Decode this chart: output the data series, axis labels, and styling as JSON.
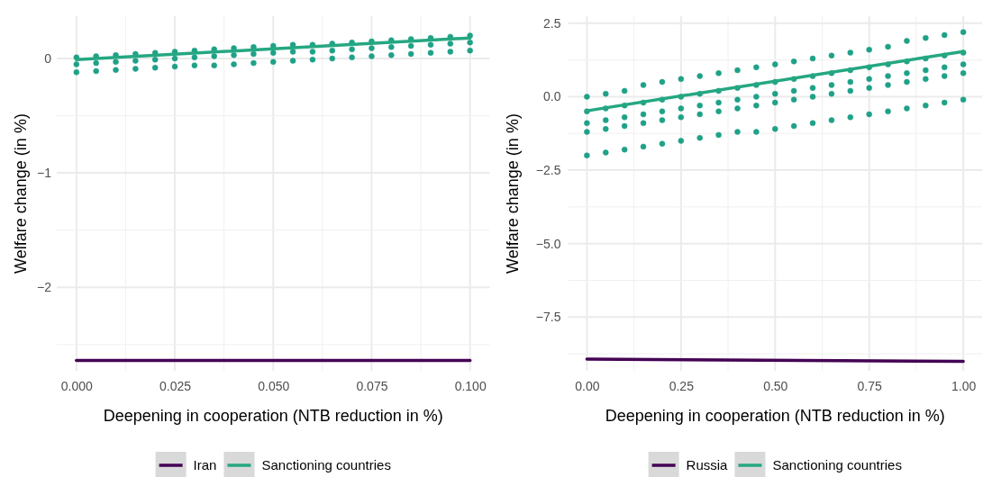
{
  "chart_data": [
    {
      "type": "scatter",
      "xlabel": "Deepening in cooperation (NTB reduction in %)",
      "ylabel": "Welfare change (in %)",
      "xlim": [
        -0.005,
        0.105
      ],
      "ylim": [
        -2.73,
        0.37
      ],
      "xticks": [
        {
          "value": 0,
          "label": "0.000"
        },
        {
          "value": 0.025,
          "label": "0.025"
        },
        {
          "value": 0.05,
          "label": "0.050"
        },
        {
          "value": 0.075,
          "label": "0.075"
        },
        {
          "value": 0.1,
          "label": "0.100"
        }
      ],
      "yticks": [
        {
          "value": -2,
          "label": "−2"
        },
        {
          "value": -1,
          "label": "−1"
        },
        0
      ],
      "grid": true,
      "legend": "bottom",
      "series": [
        {
          "marker": "circle",
          "color": "#1fa187",
          "x": [
            0,
            0,
            0,
            0.005,
            0.005,
            0.005,
            0.01,
            0.01,
            0.01,
            0.015,
            0.015,
            0.015,
            0.02,
            0.02,
            0.02,
            0.025,
            0.025,
            0.025,
            0.03,
            0.03,
            0.03,
            0.035,
            0.035,
            0.035,
            0.04,
            0.04,
            0.04,
            0.045,
            0.045,
            0.045,
            0.05,
            0.05,
            0.05,
            0.055,
            0.055,
            0.055,
            0.06,
            0.06,
            0.06,
            0.065,
            0.065,
            0.065,
            0.07,
            0.07,
            0.07,
            0.075,
            0.075,
            0.075,
            0.08,
            0.08,
            0.08,
            0.085,
            0.085,
            0.085,
            0.09,
            0.09,
            0.09,
            0.095,
            0.095,
            0.095,
            0.1,
            0.1,
            0.1
          ],
          "values": [
            0.01,
            -0.05,
            -0.12,
            0.02,
            -0.04,
            -0.11,
            0.03,
            -0.03,
            -0.1,
            0.04,
            -0.02,
            -0.09,
            0.05,
            -0.01,
            -0.08,
            0.06,
            0.0,
            -0.07,
            0.07,
            0.01,
            -0.06,
            0.08,
            0.02,
            -0.06,
            0.09,
            0.03,
            -0.05,
            0.1,
            0.04,
            -0.04,
            0.11,
            0.05,
            -0.03,
            0.12,
            0.06,
            -0.02,
            0.12,
            0.06,
            -0.01,
            0.13,
            0.07,
            0.0,
            0.14,
            0.08,
            0.01,
            0.15,
            0.09,
            0.02,
            0.16,
            0.1,
            0.03,
            0.17,
            0.11,
            0.04,
            0.18,
            0.12,
            0.05,
            0.19,
            0.13,
            0.06,
            0.2,
            0.14,
            0.07
          ]
        },
        {
          "type": "line",
          "name": "Iran",
          "color": "#440154",
          "x": [
            0,
            0.1
          ],
          "values": [
            -2.64,
            -2.64
          ]
        },
        {
          "type": "line",
          "name": "Sanctioning countries",
          "color": "#25a782",
          "x": [
            0,
            0.1
          ],
          "values": [
            -0.01,
            0.18
          ]
        }
      ]
    },
    {
      "type": "scatter",
      "xlabel": "Deepening in cooperation (NTB reduction in %)",
      "ylabel": "Welfare change (in %)",
      "xlim": [
        -0.05,
        1.05
      ],
      "ylim": [
        -9.33,
        2.74
      ],
      "xticks": [
        {
          "value": 0,
          "label": "0.00"
        },
        {
          "value": 0.25,
          "label": "0.25"
        },
        {
          "value": 0.5,
          "label": "0.50"
        },
        {
          "value": 0.75,
          "label": "0.75"
        },
        {
          "value": 1,
          "label": "1.00"
        }
      ],
      "yticks": [
        {
          "value": -7.5,
          "label": "−7.5"
        },
        {
          "value": -5,
          "label": "−5.0"
        },
        {
          "value": -2.5,
          "label": "−2.5"
        },
        {
          "value": 0,
          "label": "0.0"
        },
        2.5
      ],
      "grid": true,
      "legend": "bottom",
      "series": [
        {
          "marker": "circle",
          "color": "#1fa187",
          "x": [
            0,
            0,
            0,
            0,
            0,
            0.05,
            0.05,
            0.05,
            0.05,
            0.05,
            0.1,
            0.1,
            0.1,
            0.1,
            0.1,
            0.15,
            0.15,
            0.15,
            0.15,
            0.15,
            0.2,
            0.2,
            0.2,
            0.2,
            0.2,
            0.25,
            0.25,
            0.25,
            0.25,
            0.25,
            0.3,
            0.3,
            0.3,
            0.3,
            0.3,
            0.35,
            0.35,
            0.35,
            0.35,
            0.35,
            0.4,
            0.4,
            0.4,
            0.4,
            0.4,
            0.45,
            0.45,
            0.45,
            0.45,
            0.45,
            0.5,
            0.5,
            0.5,
            0.5,
            0.5,
            0.55,
            0.55,
            0.55,
            0.55,
            0.55,
            0.6,
            0.6,
            0.6,
            0.6,
            0.6,
            0.65,
            0.65,
            0.65,
            0.65,
            0.65,
            0.7,
            0.7,
            0.7,
            0.7,
            0.7,
            0.75,
            0.75,
            0.75,
            0.75,
            0.75,
            0.8,
            0.8,
            0.8,
            0.8,
            0.8,
            0.85,
            0.85,
            0.85,
            0.85,
            0.85,
            0.9,
            0.9,
            0.9,
            0.9,
            0.9,
            0.95,
            0.95,
            0.95,
            0.95,
            0.95,
            1,
            1,
            1,
            1,
            1
          ],
          "values": [
            0.0,
            -0.5,
            -0.9,
            -1.2,
            -2.0,
            0.1,
            -0.4,
            -0.8,
            -1.1,
            -1.9,
            0.2,
            -0.3,
            -0.7,
            -1.0,
            -1.8,
            0.4,
            -0.2,
            -0.6,
            -0.9,
            -1.7,
            0.5,
            -0.1,
            -0.5,
            -0.8,
            -1.6,
            0.6,
            0.0,
            -0.4,
            -0.7,
            -1.5,
            0.7,
            0.1,
            -0.3,
            -0.6,
            -1.4,
            0.8,
            0.2,
            -0.2,
            -0.5,
            -1.3,
            0.9,
            0.3,
            -0.1,
            -0.4,
            -1.2,
            1.0,
            0.4,
            0.0,
            -0.3,
            -1.2,
            1.1,
            0.5,
            0.1,
            -0.2,
            -1.1,
            1.2,
            0.6,
            0.2,
            -0.1,
            -1.0,
            1.3,
            0.7,
            0.3,
            0.0,
            -0.9,
            1.4,
            0.8,
            0.4,
            0.1,
            -0.8,
            1.5,
            0.9,
            0.5,
            0.2,
            -0.7,
            1.6,
            1.0,
            0.6,
            0.3,
            -0.6,
            1.7,
            1.1,
            0.7,
            0.4,
            -0.5,
            1.9,
            1.2,
            0.8,
            0.5,
            -0.4,
            2.0,
            1.3,
            0.9,
            0.6,
            -0.3,
            2.1,
            1.4,
            1.0,
            0.7,
            -0.2,
            2.2,
            1.5,
            1.1,
            0.8,
            -0.1
          ]
        },
        {
          "type": "line",
          "name": "Russia",
          "color": "#440154",
          "x": [
            0,
            1
          ],
          "values": [
            -8.93,
            -9.01
          ]
        },
        {
          "type": "line",
          "name": "Sanctioning countries",
          "color": "#25a782",
          "x": [
            0,
            1
          ],
          "values": [
            -0.48,
            1.54
          ]
        }
      ]
    }
  ]
}
